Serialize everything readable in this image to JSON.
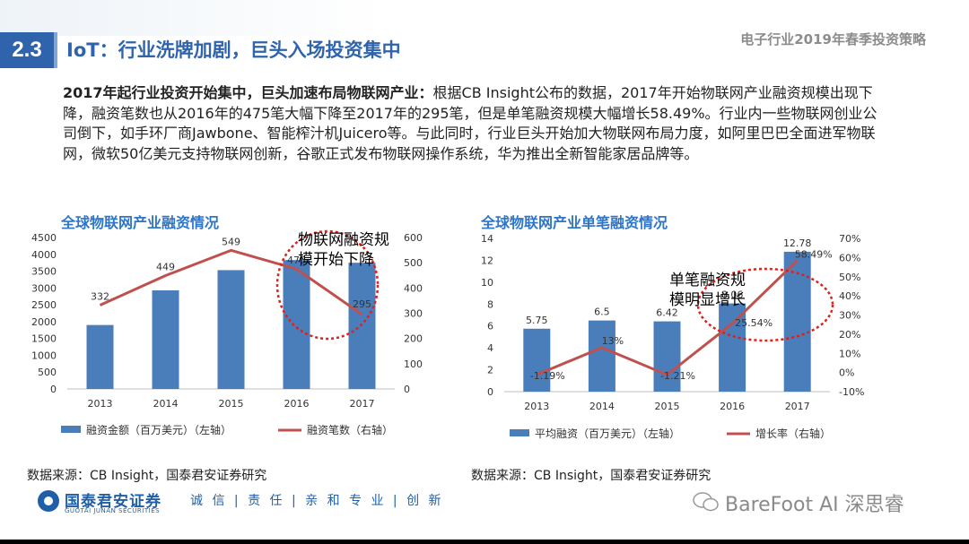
{
  "header": {
    "section_number": "2.3",
    "title": "IoT：行业洗牌加剧，巨头入场投资集中",
    "report_title": "电子行业2019年春季投资策略"
  },
  "paragraph": {
    "bold_lead": "2017年起行业投资开始集中，巨头加速布局物联网产业：",
    "body": "根据CB Insight公布的数据，2017年开始物联网产业融资规模出现下降，融资笔数也从2016年的475笔大幅下降至2017年的295笔，但是单笔融资规模大幅增长58.49%。行业内一些物联网创业公司倒下，如手环厂商Jawbone、智能榨汁机Juicero等。与此同时，行业巨头开始加大物联网布局力度，如阿里巴巴全面进军物联网，微软50亿美元支持物联网创新，谷歌正式发布物联网操作系统，华为推出全新智能家居品牌等。"
  },
  "chart_data": [
    {
      "type": "bar",
      "title": "全球物联网产业融资情况",
      "categories": [
        "2013",
        "2014",
        "2015",
        "2016",
        "2017"
      ],
      "series": [
        {
          "name": "融资金额（百万美元）（左轴）",
          "type": "bar",
          "axis": "left",
          "values": [
            1900,
            2930,
            3530,
            3830,
            3750
          ]
        },
        {
          "name": "融资笔数（右轴）",
          "type": "line",
          "axis": "right",
          "values": [
            332,
            449,
            549,
            475,
            295
          ]
        }
      ],
      "y_left": {
        "ylim": [
          0,
          4500
        ],
        "ticks": [
          "0",
          "500",
          "1000",
          "1500",
          "2000",
          "2500",
          "3000",
          "3500",
          "4000",
          "4500"
        ]
      },
      "y_right": {
        "ylim": [
          0,
          600
        ],
        "ticks": [
          "0",
          "100",
          "200",
          "300",
          "400",
          "500",
          "600"
        ]
      },
      "line_labels": [
        "332",
        "449",
        "549",
        "475",
        "295"
      ],
      "annotation": [
        "物联网融资规",
        "模开始下降"
      ],
      "colors": {
        "bar": "#4a7ebb",
        "line": "#c0504d",
        "annotation_circle": "#e0201a"
      },
      "legend_placement": "bottom",
      "grid": false
    },
    {
      "type": "bar",
      "title": "全球物联网产业单笔融资情况",
      "categories": [
        "2013",
        "2014",
        "2015",
        "2016",
        "2017"
      ],
      "series": [
        {
          "name": "平均融资（百万美元）（左轴）",
          "type": "bar",
          "axis": "left",
          "values": [
            5.75,
            6.5,
            6.42,
            8.06,
            12.78
          ]
        },
        {
          "name": "增长率（右轴）",
          "type": "line",
          "axis": "right",
          "values": [
            -1.19,
            13,
            -1.21,
            25.54,
            58.49
          ]
        }
      ],
      "y_left": {
        "ylim": [
          0,
          14
        ],
        "ticks": [
          "0",
          "2",
          "4",
          "6",
          "8",
          "10",
          "12",
          "14"
        ]
      },
      "y_right": {
        "ylim": [
          -10,
          70
        ],
        "ticks": [
          "-10%",
          "0%",
          "10%",
          "20%",
          "30%",
          "40%",
          "50%",
          "60%",
          "70%"
        ]
      },
      "bar_labels": [
        "5.75",
        "6.5",
        "6.42",
        "8.06",
        "12.78"
      ],
      "line_labels": [
        "-1.19%",
        "13%",
        "-1.21%",
        "25.54%",
        "58.49%"
      ],
      "annotation": [
        "单笔融资规",
        "模明显增长"
      ],
      "colors": {
        "bar": "#4a7ebb",
        "line": "#c0504d",
        "annotation_circle": "#e0201a"
      },
      "legend_placement": "bottom",
      "grid": false
    }
  ],
  "sources": {
    "left": "数据来源：CB Insight，国泰君安证券研究",
    "right": "数据来源：CB Insight，国泰君安证券研究"
  },
  "footer": {
    "company_cn": "国泰君安证券",
    "company_en": "GUOTAI JUNAN SECURITIES",
    "slogan": "诚 信 | 责 任 | 亲 和   专 业 | 创 新",
    "watermark": "BareFoot AI 深思睿"
  }
}
